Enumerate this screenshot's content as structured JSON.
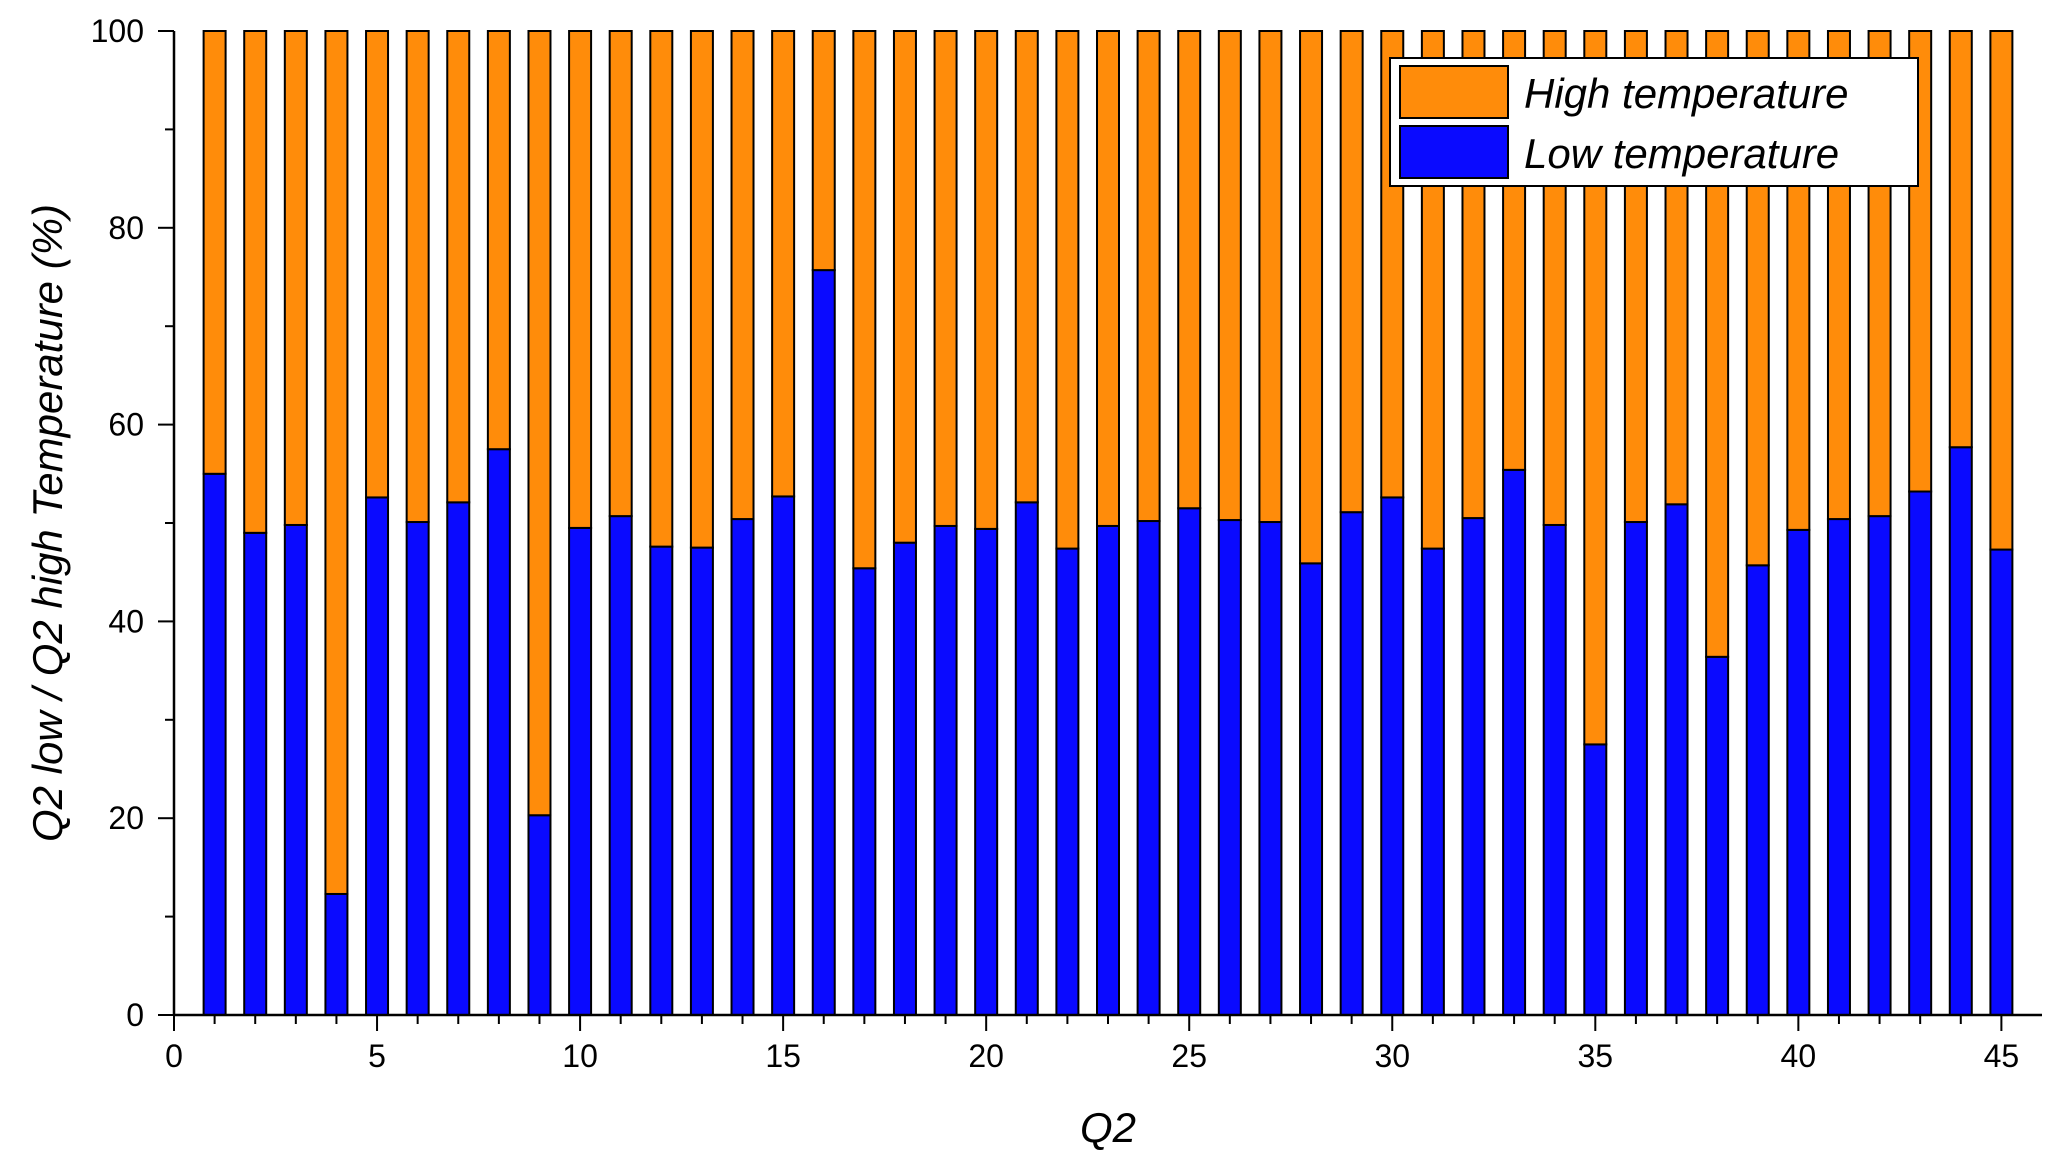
{
  "chart_data": {
    "type": "bar",
    "stacked": true,
    "xlabel": "Q2",
    "ylabel": "Q2 low / Q2 high Temperature (%)",
    "xlim": [
      0,
      46
    ],
    "ylim": [
      0,
      100
    ],
    "x_ticks": [
      0,
      5,
      10,
      15,
      20,
      25,
      30,
      35,
      40,
      45
    ],
    "y_ticks": [
      0,
      20,
      40,
      60,
      80,
      100
    ],
    "legend_position": "top-right",
    "x": [
      1,
      2,
      3,
      4,
      5,
      6,
      7,
      8,
      9,
      10,
      11,
      12,
      13,
      14,
      15,
      16,
      17,
      18,
      19,
      20,
      21,
      22,
      23,
      24,
      25,
      26,
      27,
      28,
      29,
      30,
      31,
      32,
      33,
      34,
      35,
      36,
      37,
      38,
      39,
      40,
      41,
      42,
      43,
      44,
      45
    ],
    "series": [
      {
        "name": "Low temperature",
        "color": "#0a0aff",
        "values": [
          55.0,
          49.0,
          49.8,
          12.3,
          52.6,
          50.1,
          52.1,
          57.5,
          20.3,
          49.5,
          50.7,
          47.6,
          47.5,
          50.4,
          52.7,
          75.7,
          45.4,
          48.0,
          49.7,
          49.4,
          52.1,
          47.4,
          49.7,
          50.2,
          51.5,
          50.3,
          50.1,
          45.9,
          51.1,
          52.6,
          47.4,
          50.5,
          55.4,
          49.8,
          27.5,
          50.1,
          51.9,
          36.4,
          45.7,
          49.3,
          50.4,
          50.7,
          53.2,
          57.7,
          47.3
        ]
      },
      {
        "name": "High temperature",
        "color": "#ff8c0a",
        "values": [
          45.0,
          51.0,
          50.2,
          87.7,
          47.4,
          49.9,
          47.9,
          42.5,
          79.7,
          50.5,
          49.3,
          52.4,
          52.5,
          49.6,
          47.3,
          24.3,
          54.6,
          52.0,
          50.3,
          50.6,
          47.9,
          52.6,
          50.3,
          49.8,
          48.5,
          49.7,
          49.9,
          54.1,
          48.9,
          47.4,
          52.6,
          49.5,
          44.6,
          50.2,
          72.5,
          49.9,
          48.1,
          63.6,
          54.3,
          50.7,
          49.6,
          49.3,
          46.8,
          42.3,
          52.7
        ]
      }
    ]
  }
}
